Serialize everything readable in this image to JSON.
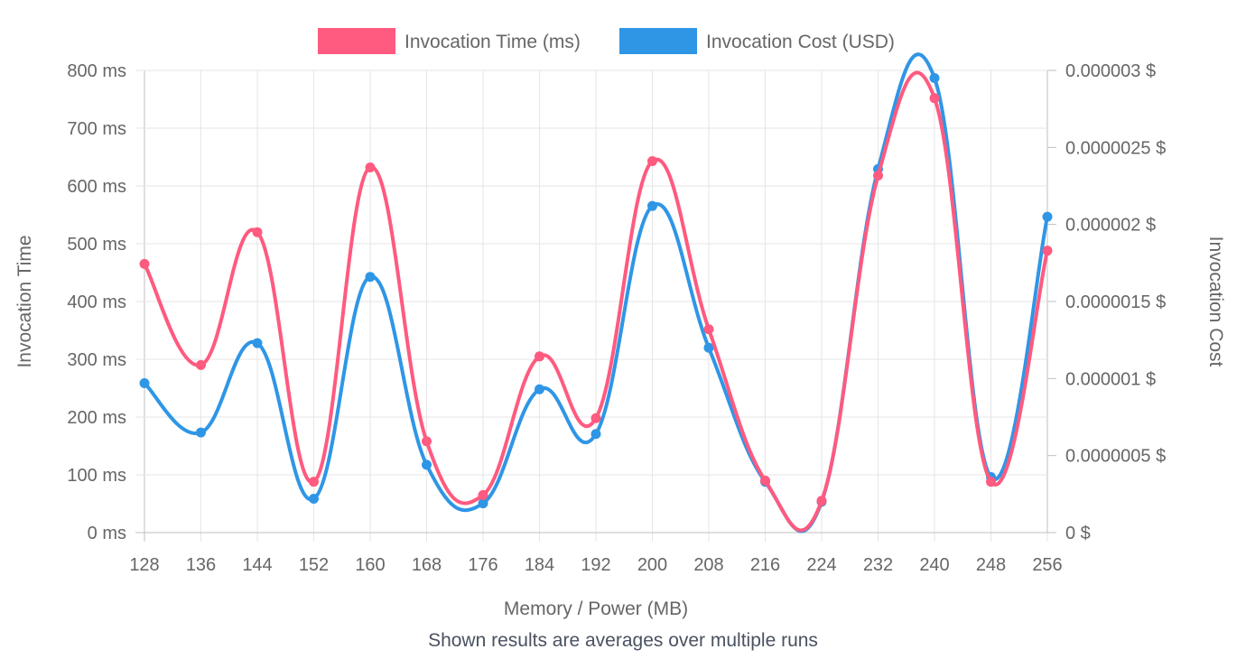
{
  "chart_data": {
    "type": "line",
    "x": [
      128,
      136,
      144,
      152,
      160,
      168,
      176,
      184,
      192,
      200,
      208,
      216,
      224,
      232,
      240,
      248,
      256
    ],
    "xlabel": "Memory / Power (MB)",
    "ylabel": "Invocation Time",
    "y2label": "Invocation Cost",
    "ylim": [
      0,
      800
    ],
    "y2lim": [
      0,
      3e-06
    ],
    "yticks": [
      "0 ms",
      "100 ms",
      "200 ms",
      "300 ms",
      "400 ms",
      "500 ms",
      "600 ms",
      "700 ms",
      "800 ms"
    ],
    "y2ticks": [
      "0 $",
      "0.0000005 $",
      "0.000001 $",
      "0.0000015 $",
      "0.000002 $",
      "0.0000025 $",
      "0.000003 $"
    ],
    "grid": true,
    "legend_position": "top",
    "series": [
      {
        "name": "Invocation Time (ms)",
        "axis": "left",
        "color": "#ff5a7f",
        "values": [
          465,
          290,
          520,
          88,
          632,
          158,
          65,
          305,
          198,
          643,
          352,
          90,
          55,
          618,
          752,
          88,
          488
        ]
      },
      {
        "name": "Invocation Cost (USD)",
        "axis": "right",
        "color": "#2f96e6",
        "values": [
          9.7e-07,
          6.5e-07,
          1.23e-06,
          2.2e-07,
          1.66e-06,
          4.4e-07,
          1.9e-07,
          9.3e-07,
          6.4e-07,
          2.12e-06,
          1.2e-06,
          3.3e-07,
          2e-07,
          2.36e-06,
          2.95e-06,
          3.6e-07,
          2.05e-06
        ]
      }
    ]
  },
  "caption": "Shown results are averages over multiple runs"
}
